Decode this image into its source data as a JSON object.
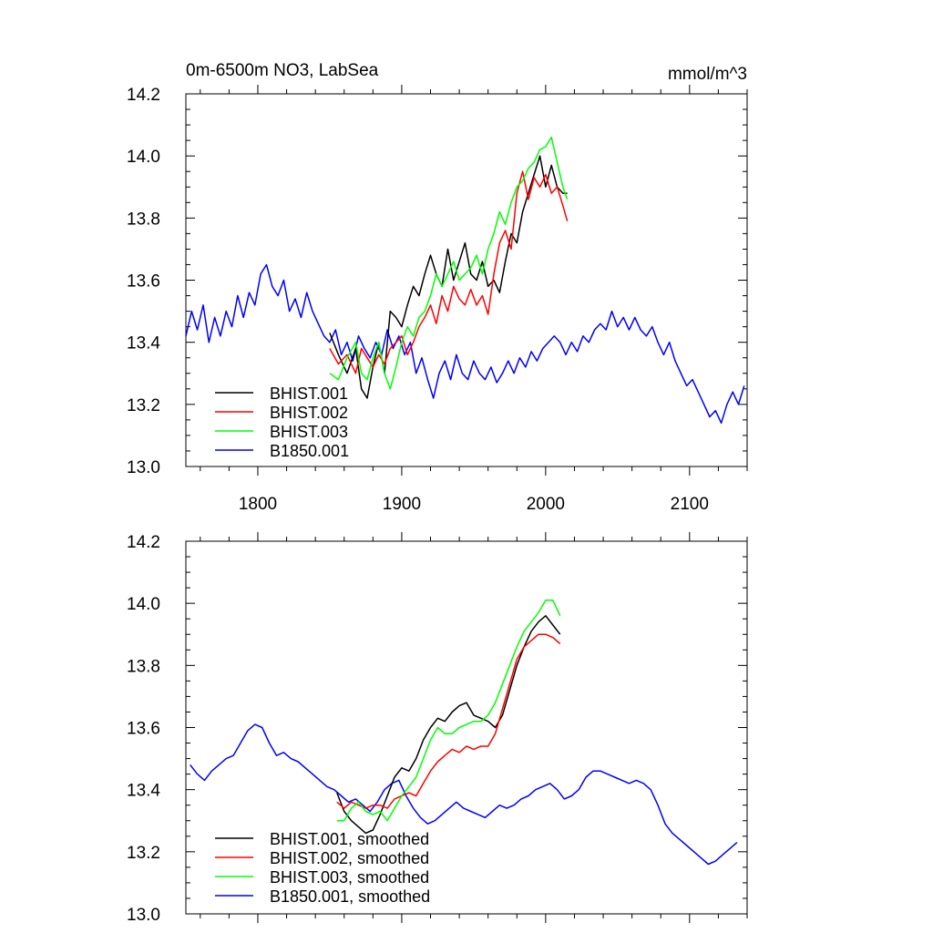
{
  "page": {
    "title_left": "0m-6500m NO3, LabSea",
    "title_right": "mmol/m^3"
  },
  "chart_data": [
    {
      "type": "line",
      "title": "0m-6500m NO3, LabSea",
      "units": "mmol/m^3",
      "xlim": [
        1750,
        2140
      ],
      "ylim": [
        13.0,
        14.2
      ],
      "x_ticks": [
        "1800",
        "1900",
        "2000",
        "2100"
      ],
      "y_ticks": [
        "13.0",
        "13.2",
        "13.4",
        "13.6",
        "13.8",
        "14.0",
        "14.2"
      ],
      "grid": false,
      "legend_position": "bottom-left",
      "series": [
        {
          "name": "BHIST.001",
          "color": "#000000",
          "x": [
            1850,
            1856,
            1862,
            1868,
            1872,
            1876,
            1880,
            1884,
            1888,
            1892,
            1896,
            1900,
            1904,
            1908,
            1912,
            1916,
            1920,
            1924,
            1928,
            1932,
            1936,
            1940,
            1944,
            1948,
            1952,
            1956,
            1960,
            1964,
            1968,
            1972,
            1976,
            1980,
            1984,
            1988,
            1992,
            1996,
            2000,
            2004,
            2008,
            2012,
            2015
          ],
          "y": [
            13.43,
            13.36,
            13.3,
            13.38,
            13.25,
            13.22,
            13.32,
            13.4,
            13.3,
            13.5,
            13.48,
            13.45,
            13.52,
            13.58,
            13.55,
            13.62,
            13.68,
            13.62,
            13.58,
            13.7,
            13.6,
            13.66,
            13.72,
            13.62,
            13.6,
            13.66,
            13.58,
            13.6,
            13.56,
            13.66,
            13.75,
            13.72,
            13.82,
            13.88,
            13.94,
            14.0,
            13.9,
            13.97,
            13.9,
            13.88,
            13.88
          ]
        },
        {
          "name": "BHIST.002",
          "color": "#ff0000",
          "x": [
            1850,
            1856,
            1862,
            1868,
            1872,
            1876,
            1880,
            1884,
            1888,
            1892,
            1896,
            1900,
            1904,
            1908,
            1912,
            1916,
            1920,
            1924,
            1928,
            1932,
            1936,
            1940,
            1944,
            1948,
            1952,
            1956,
            1960,
            1964,
            1968,
            1972,
            1976,
            1980,
            1984,
            1988,
            1992,
            1996,
            2000,
            2004,
            2008,
            2012,
            2015
          ],
          "y": [
            13.38,
            13.33,
            13.36,
            13.3,
            13.38,
            13.35,
            13.32,
            13.36,
            13.33,
            13.38,
            13.4,
            13.42,
            13.36,
            13.4,
            13.45,
            13.48,
            13.52,
            13.46,
            13.55,
            13.5,
            13.58,
            13.54,
            13.52,
            13.57,
            13.52,
            13.55,
            13.49,
            13.62,
            13.72,
            13.76,
            13.7,
            13.88,
            13.95,
            13.86,
            13.93,
            13.9,
            13.94,
            13.88,
            13.9,
            13.84,
            13.79
          ]
        },
        {
          "name": "BHIST.003",
          "color": "#00ff00",
          "x": [
            1850,
            1856,
            1862,
            1868,
            1872,
            1876,
            1880,
            1884,
            1888,
            1892,
            1896,
            1900,
            1904,
            1908,
            1912,
            1916,
            1920,
            1924,
            1928,
            1932,
            1936,
            1940,
            1944,
            1948,
            1952,
            1956,
            1960,
            1964,
            1968,
            1972,
            1976,
            1980,
            1984,
            1988,
            1992,
            1996,
            2000,
            2004,
            2008,
            2012,
            2015
          ],
          "y": [
            13.3,
            13.28,
            13.35,
            13.4,
            13.3,
            13.28,
            13.35,
            13.4,
            13.3,
            13.25,
            13.32,
            13.4,
            13.45,
            13.42,
            13.48,
            13.5,
            13.55,
            13.62,
            13.58,
            13.62,
            13.66,
            13.6,
            13.62,
            13.64,
            13.68,
            13.62,
            13.7,
            13.75,
            13.82,
            13.78,
            13.85,
            13.9,
            13.92,
            13.96,
            13.98,
            14.02,
            14.03,
            14.06,
            13.98,
            13.9,
            13.86
          ]
        },
        {
          "name": "B1850.001",
          "color": "#0000ff",
          "x": [
            1750,
            1754,
            1758,
            1762,
            1766,
            1770,
            1774,
            1778,
            1782,
            1786,
            1790,
            1794,
            1798,
            1802,
            1806,
            1810,
            1814,
            1818,
            1822,
            1826,
            1830,
            1834,
            1838,
            1842,
            1846,
            1850,
            1854,
            1858,
            1862,
            1866,
            1870,
            1874,
            1878,
            1882,
            1886,
            1890,
            1894,
            1898,
            1902,
            1906,
            1910,
            1914,
            1918,
            1922,
            1926,
            1930,
            1934,
            1938,
            1942,
            1946,
            1950,
            1954,
            1958,
            1962,
            1966,
            1970,
            1974,
            1978,
            1982,
            1986,
            1990,
            1994,
            1998,
            2002,
            2006,
            2010,
            2014,
            2018,
            2022,
            2026,
            2030,
            2034,
            2038,
            2042,
            2046,
            2050,
            2054,
            2058,
            2062,
            2066,
            2070,
            2074,
            2078,
            2082,
            2086,
            2090,
            2094,
            2098,
            2102,
            2106,
            2110,
            2114,
            2118,
            2122,
            2126,
            2130,
            2134,
            2138
          ],
          "y": [
            13.42,
            13.5,
            13.44,
            13.52,
            13.4,
            13.48,
            13.42,
            13.5,
            13.45,
            13.55,
            13.48,
            13.56,
            13.52,
            13.62,
            13.65,
            13.58,
            13.55,
            13.6,
            13.5,
            13.54,
            13.48,
            13.56,
            13.5,
            13.46,
            13.42,
            13.4,
            13.44,
            13.36,
            13.4,
            13.34,
            13.42,
            13.38,
            13.35,
            13.4,
            13.36,
            13.44,
            13.38,
            13.42,
            13.36,
            13.4,
            13.3,
            13.35,
            13.28,
            13.22,
            13.3,
            13.34,
            13.28,
            13.36,
            13.3,
            13.28,
            13.34,
            13.3,
            13.28,
            13.32,
            13.27,
            13.3,
            13.34,
            13.3,
            13.35,
            13.32,
            13.37,
            13.34,
            13.38,
            13.4,
            13.42,
            13.4,
            13.36,
            13.4,
            13.37,
            13.42,
            13.4,
            13.44,
            13.46,
            13.44,
            13.5,
            13.45,
            13.48,
            13.44,
            13.48,
            13.44,
            13.42,
            13.45,
            13.4,
            13.36,
            13.4,
            13.34,
            13.3,
            13.26,
            13.28,
            13.24,
            13.2,
            13.16,
            13.18,
            13.14,
            13.2,
            13.24,
            13.2,
            13.26
          ]
        }
      ]
    },
    {
      "type": "line",
      "xlim": [
        1750,
        2140
      ],
      "ylim": [
        13.0,
        14.2
      ],
      "x_ticks": [],
      "y_ticks": [
        "13.0",
        "13.2",
        "13.4",
        "13.6",
        "13.8",
        "14.0",
        "14.2"
      ],
      "grid": false,
      "legend_position": "bottom-left",
      "series": [
        {
          "name": "BHIST.001, smoothed",
          "color": "#000000",
          "x": [
            1855,
            1860,
            1865,
            1870,
            1875,
            1880,
            1885,
            1890,
            1895,
            1900,
            1905,
            1910,
            1915,
            1920,
            1925,
            1930,
            1935,
            1940,
            1945,
            1950,
            1955,
            1960,
            1965,
            1970,
            1975,
            1980,
            1985,
            1990,
            1995,
            2000,
            2005,
            2010
          ],
          "y": [
            13.39,
            13.33,
            13.3,
            13.28,
            13.26,
            13.27,
            13.32,
            13.38,
            13.44,
            13.47,
            13.46,
            13.5,
            13.56,
            13.6,
            13.63,
            13.62,
            13.65,
            13.67,
            13.68,
            13.64,
            13.63,
            13.62,
            13.6,
            13.64,
            13.72,
            13.8,
            13.86,
            13.91,
            13.94,
            13.96,
            13.93,
            13.9
          ]
        },
        {
          "name": "BHIST.002, smoothed",
          "color": "#ff0000",
          "x": [
            1855,
            1860,
            1865,
            1870,
            1875,
            1880,
            1885,
            1890,
            1895,
            1900,
            1905,
            1910,
            1915,
            1920,
            1925,
            1930,
            1935,
            1940,
            1945,
            1950,
            1955,
            1960,
            1965,
            1970,
            1975,
            1980,
            1985,
            1990,
            1995,
            2000,
            2005,
            2010
          ],
          "y": [
            13.36,
            13.34,
            13.36,
            13.35,
            13.34,
            13.35,
            13.35,
            13.34,
            13.37,
            13.38,
            13.39,
            13.38,
            13.42,
            13.46,
            13.49,
            13.51,
            13.53,
            13.52,
            13.54,
            13.53,
            13.54,
            13.54,
            13.58,
            13.66,
            13.74,
            13.82,
            13.86,
            13.88,
            13.9,
            13.9,
            13.89,
            13.87
          ]
        },
        {
          "name": "BHIST.003, smoothed",
          "color": "#00ff00",
          "x": [
            1855,
            1860,
            1865,
            1870,
            1875,
            1880,
            1885,
            1890,
            1895,
            1900,
            1905,
            1910,
            1915,
            1920,
            1925,
            1930,
            1935,
            1940,
            1945,
            1950,
            1955,
            1960,
            1965,
            1970,
            1975,
            1980,
            1985,
            1990,
            1995,
            2000,
            2005,
            2010
          ],
          "y": [
            13.3,
            13.3,
            13.34,
            13.36,
            13.33,
            13.32,
            13.33,
            13.3,
            13.34,
            13.38,
            13.41,
            13.44,
            13.5,
            13.56,
            13.6,
            13.58,
            13.58,
            13.6,
            13.61,
            13.62,
            13.62,
            13.64,
            13.68,
            13.74,
            13.8,
            13.86,
            13.91,
            13.94,
            13.97,
            14.01,
            14.01,
            13.96
          ]
        },
        {
          "name": "B1850.001, smoothed",
          "color": "#0000ff",
          "x": [
            1753,
            1758,
            1763,
            1768,
            1773,
            1778,
            1783,
            1788,
            1793,
            1798,
            1803,
            1808,
            1813,
            1818,
            1823,
            1828,
            1833,
            1838,
            1843,
            1848,
            1853,
            1858,
            1863,
            1868,
            1873,
            1878,
            1883,
            1888,
            1893,
            1898,
            1903,
            1908,
            1913,
            1918,
            1923,
            1928,
            1933,
            1938,
            1943,
            1948,
            1953,
            1958,
            1963,
            1968,
            1973,
            1978,
            1983,
            1988,
            1993,
            1998,
            2003,
            2008,
            2013,
            2018,
            2023,
            2028,
            2033,
            2038,
            2043,
            2048,
            2053,
            2058,
            2063,
            2068,
            2073,
            2078,
            2083,
            2088,
            2093,
            2098,
            2103,
            2108,
            2113,
            2118,
            2123,
            2128,
            2133
          ],
          "y": [
            13.48,
            13.45,
            13.43,
            13.46,
            13.48,
            13.5,
            13.51,
            13.55,
            13.59,
            13.61,
            13.6,
            13.55,
            13.51,
            13.52,
            13.5,
            13.49,
            13.47,
            13.45,
            13.43,
            13.41,
            13.4,
            13.38,
            13.36,
            13.37,
            13.35,
            13.33,
            13.36,
            13.4,
            13.42,
            13.43,
            13.38,
            13.34,
            13.31,
            13.29,
            13.3,
            13.32,
            13.34,
            13.36,
            13.34,
            13.33,
            13.32,
            13.31,
            13.33,
            13.35,
            13.34,
            13.35,
            13.37,
            13.38,
            13.4,
            13.41,
            13.42,
            13.4,
            13.37,
            13.38,
            13.4,
            13.44,
            13.46,
            13.46,
            13.45,
            13.44,
            13.43,
            13.42,
            13.43,
            13.42,
            13.4,
            13.35,
            13.29,
            13.26,
            13.24,
            13.22,
            13.2,
            13.18,
            13.16,
            13.17,
            13.19,
            13.21,
            13.23
          ]
        }
      ]
    }
  ]
}
